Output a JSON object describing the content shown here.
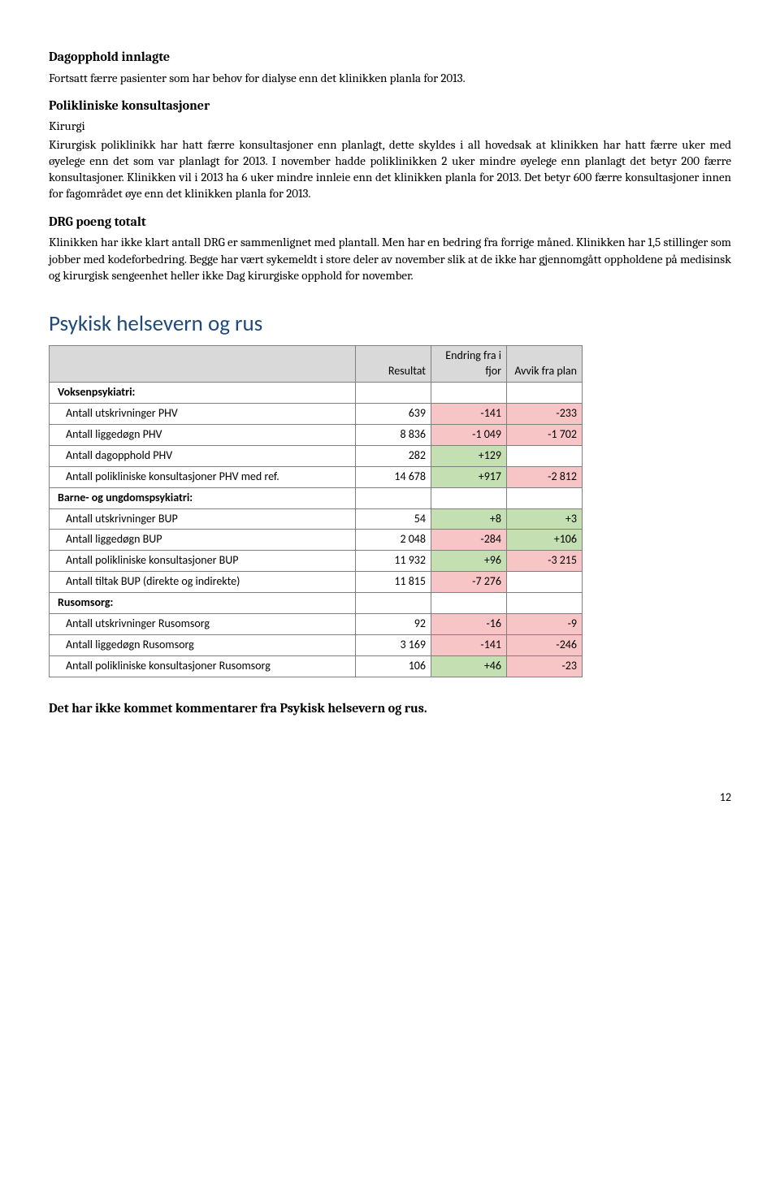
{
  "s1": {
    "h": "Dagopphold innlagte",
    "p": "Fortsatt færre pasienter som har behov for dialyse enn det klinikken planla for 2013."
  },
  "s2": {
    "h": "Polikliniske konsultasjoner",
    "sub": "Kirurgi",
    "p": "Kirurgisk poliklinikk har hatt færre konsultasjoner enn planlagt, dette skyldes i all hovedsak at klinikken har hatt færre uker med øyelege enn det som var planlagt for 2013. I november hadde poliklinikken 2 uker mindre øyelege enn planlagt det betyr 200 færre konsultasjoner. Klinikken vil i 2013 ha 6 uker mindre innleie enn det klinikken planla for 2013. Det betyr 600 færre konsultasjoner innen for fagområdet øye enn det klinikken planla for 2013."
  },
  "s3": {
    "h": "DRG poeng totalt",
    "p": "Klinikken har ikke klart antall DRG er sammenlignet med plantall. Men har en bedring fra forrige måned. Klinikken har 1,5 stillinger som jobber med kodeforbedring. Begge har vært sykemeldt i store deler av november slik at de ikke har gjennomgått oppholdene på medisinsk og kirurgisk sengeenhet heller ikke Dag kirurgiske opphold for november."
  },
  "sectionTitle": "Psykisk helsevern og rus",
  "table": {
    "headers": {
      "c2": "Resultat",
      "c3": "Endring fra i fjor",
      "c4": "Avvik fra plan"
    },
    "groups": [
      {
        "label": "Voksenpsykiatri:",
        "rows": [
          {
            "label": "Antall utskrivninger PHV",
            "r": "639",
            "e": "-141",
            "ec": "neg-pink",
            "a": "-233",
            "ac": "neg-pink"
          },
          {
            "label": "Antall liggedøgn PHV",
            "r": "8 836",
            "e": "-1 049",
            "ec": "neg-pink",
            "a": "-1 702",
            "ac": "neg-pink"
          },
          {
            "label": "Antall dagopphold PHV",
            "r": "282",
            "e": "+129",
            "ec": "pos-green",
            "a": "",
            "ac": ""
          },
          {
            "label": "Antall polikliniske konsultasjoner PHV med ref.",
            "r": "14 678",
            "e": "+917",
            "ec": "pos-green",
            "a": "-2 812",
            "ac": "neg-pink"
          }
        ]
      },
      {
        "label": "Barne- og ungdomspsykiatri:",
        "rows": [
          {
            "label": "Antall utskrivninger BUP",
            "r": "54",
            "e": "+8",
            "ec": "pos-green",
            "a": "+3",
            "ac": "pos-green"
          },
          {
            "label": "Antall liggedøgn BUP",
            "r": "2 048",
            "e": "-284",
            "ec": "neg-pink",
            "a": "+106",
            "ac": "pos-green"
          },
          {
            "label": "Antall polikliniske konsultasjoner BUP",
            "r": "11 932",
            "e": "+96",
            "ec": "pos-green",
            "a": "-3 215",
            "ac": "neg-pink"
          },
          {
            "label": "Antall tiltak BUP (direkte og indirekte)",
            "r": "11 815",
            "e": "-7 276",
            "ec": "neg-pink",
            "a": "",
            "ac": ""
          }
        ]
      },
      {
        "label": "Rusomsorg:",
        "rows": [
          {
            "label": "Antall utskrivninger Rusomsorg",
            "r": "92",
            "e": "-16",
            "ec": "neg-pink",
            "a": "-9",
            "ac": "neg-pink"
          },
          {
            "label": "Antall liggedøgn Rusomsorg",
            "r": "3 169",
            "e": "-141",
            "ec": "neg-pink",
            "a": "-246",
            "ac": "neg-pink"
          },
          {
            "label": "Antall polikliniske konsultasjoner Rusomsorg",
            "r": "106",
            "e": "+46",
            "ec": "pos-green",
            "a": "-23",
            "ac": "neg-pink"
          }
        ]
      }
    ]
  },
  "footerNote": "Det har ikke kommet kommentarer fra Psykisk helsevern og rus.",
  "pageNum": "12"
}
